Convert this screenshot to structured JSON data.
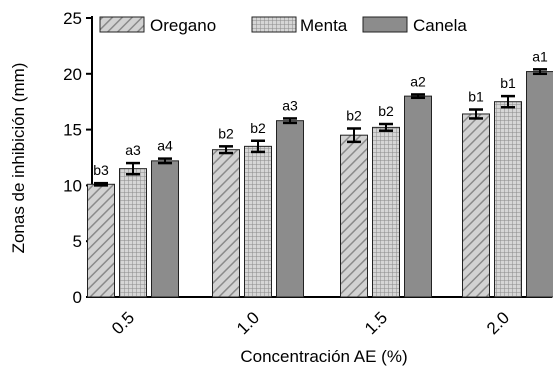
{
  "chart_data": {
    "type": "bar",
    "categories": [
      "0.5",
      "1.0",
      "1.5",
      "2.0"
    ],
    "series": [
      {
        "name": "Oregano",
        "values": [
          10.1,
          13.2,
          14.5,
          16.4
        ],
        "errors": [
          0.1,
          0.3,
          0.6,
          0.4
        ],
        "labels": [
          "b3",
          "b2",
          "b2",
          "b1"
        ],
        "fill": "hatch"
      },
      {
        "name": "Menta",
        "values": [
          11.5,
          13.5,
          15.2,
          17.5
        ],
        "errors": [
          0.5,
          0.5,
          0.3,
          0.5
        ],
        "labels": [
          "a3",
          "b2",
          "b2",
          "b1"
        ],
        "fill": "grid"
      },
      {
        "name": "Canela",
        "values": [
          12.2,
          15.8,
          18.0,
          20.2
        ],
        "errors": [
          0.2,
          0.2,
          0.15,
          0.2
        ],
        "labels": [
          "a4",
          "a3",
          "a2",
          "a1"
        ],
        "fill": "solid"
      }
    ],
    "title": "",
    "xlabel": "Concentración AE (%)",
    "ylabel": "Zonas de inhibición (mm)",
    "ylim": [
      0,
      25
    ],
    "yticks": [
      "0",
      "5",
      "10",
      "15",
      "20",
      "25"
    ],
    "grid": false,
    "legend_position": "top",
    "colors": {
      "bar_fill": "#b8b8b8",
      "solid_fill": "#8c8c8c",
      "stroke": "#222222",
      "axis": "#000000"
    }
  }
}
